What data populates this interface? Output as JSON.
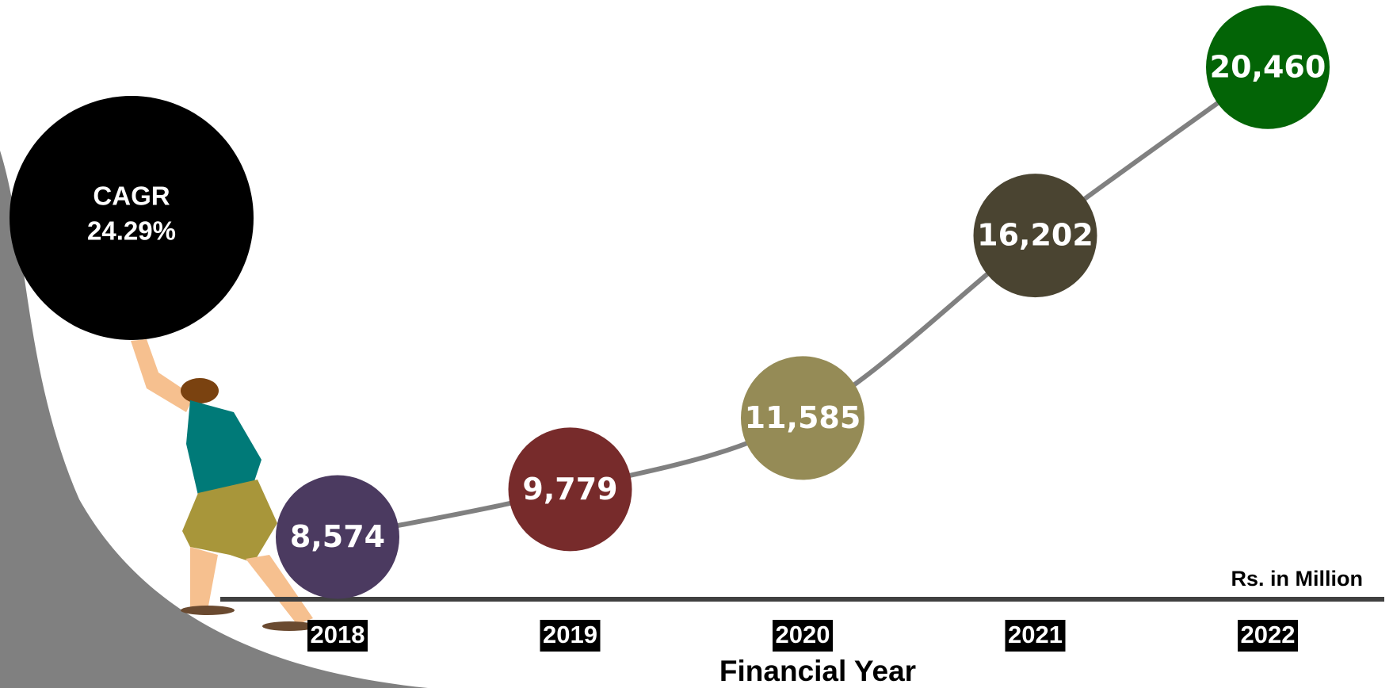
{
  "chart_data": {
    "type": "line",
    "categories": [
      "2018",
      "2019",
      "2020",
      "2021",
      "2022"
    ],
    "values": [
      8574,
      9779,
      11585,
      16202,
      20460
    ],
    "value_labels": [
      "8,574",
      "9,779",
      "11,585",
      "16,202",
      "20,460"
    ],
    "point_colors": [
      "#4b3a60",
      "#772b2b",
      "#958b56",
      "#4a4431",
      "#036406"
    ],
    "line_color": "#808080",
    "ylim": [
      7000,
      22000
    ],
    "y_label": "Rs. in Million",
    "x_label": "Financial Year",
    "annotation": {
      "title": "CAGR",
      "value": "24.29%"
    }
  }
}
